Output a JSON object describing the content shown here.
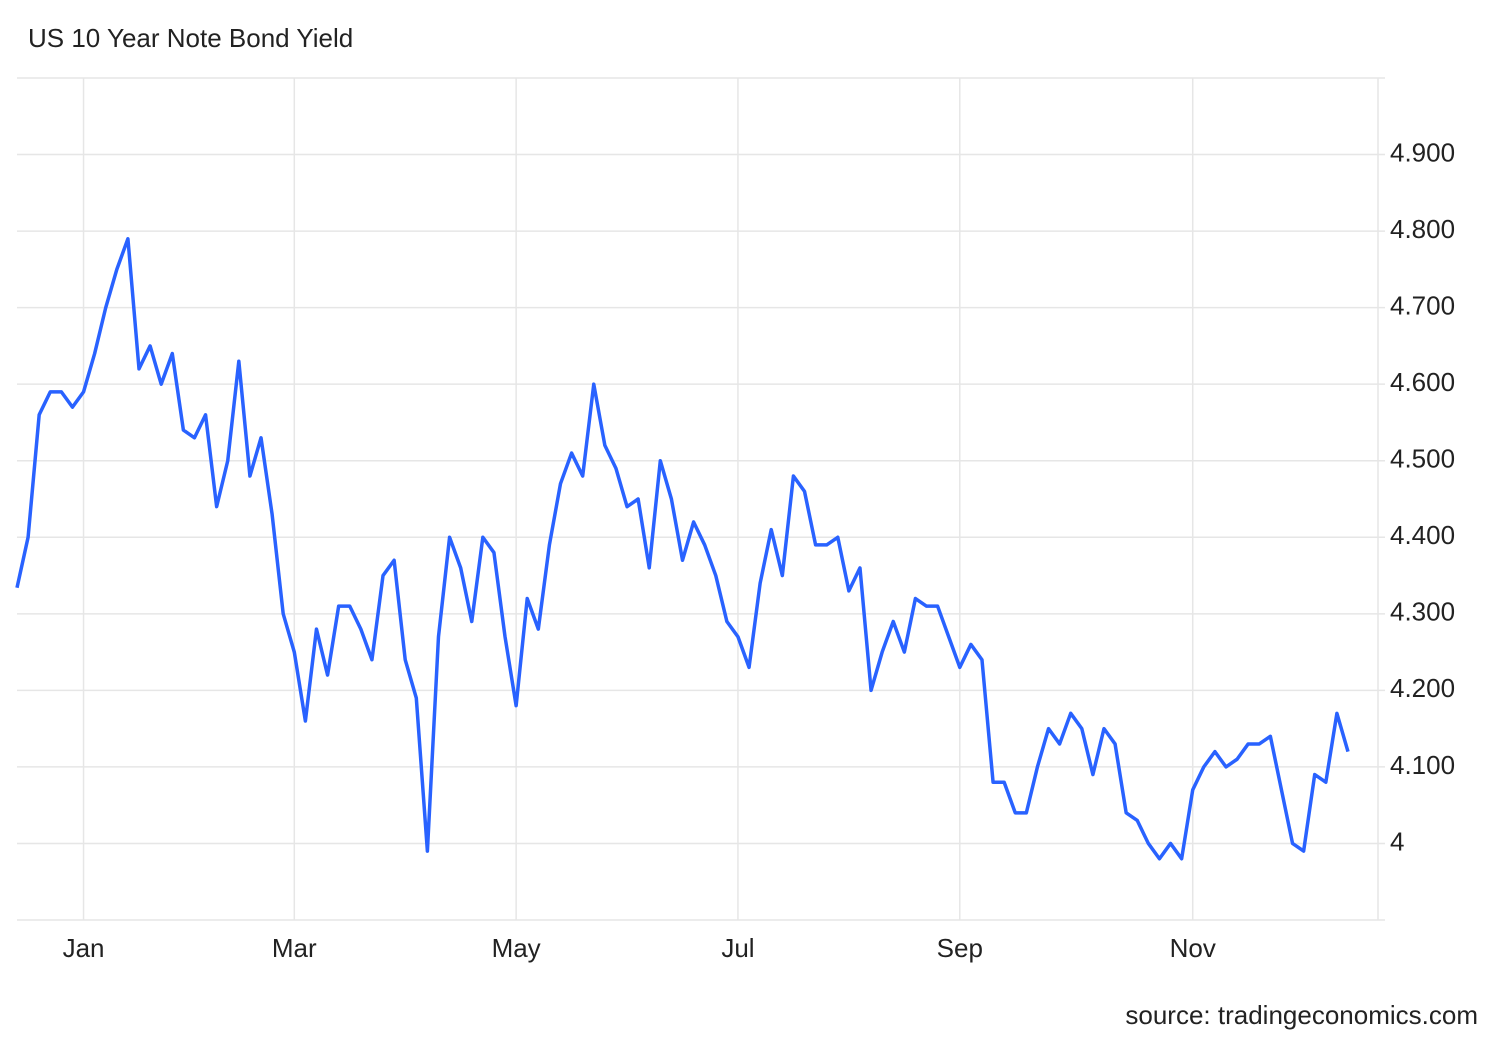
{
  "chart_data": {
    "type": "line",
    "title": "US 10 Year Note Bond Yield",
    "source": "source: tradingeconomics.com",
    "categories": [
      null,
      null,
      null,
      null,
      null,
      null,
      "Jan",
      null,
      null,
      null,
      null,
      null,
      null,
      null,
      null,
      null,
      null,
      null,
      null,
      null,
      null,
      null,
      null,
      null,
      null,
      "Mar",
      null,
      null,
      null,
      null,
      null,
      null,
      null,
      null,
      null,
      null,
      null,
      null,
      null,
      null,
      null,
      null,
      null,
      null,
      null,
      "May",
      null,
      null,
      null,
      null,
      null,
      null,
      null,
      null,
      null,
      null,
      null,
      null,
      null,
      null,
      null,
      null,
      null,
      null,
      null,
      "Jul",
      null,
      null,
      null,
      null,
      null,
      null,
      null,
      null,
      null,
      null,
      null,
      null,
      null,
      null,
      null,
      null,
      null,
      null,
      null,
      "Sep",
      null,
      null,
      null,
      null,
      null,
      null,
      null,
      null,
      null,
      null,
      null,
      null,
      null,
      null,
      null,
      null,
      null,
      null,
      null,
      null,
      "Nov",
      null,
      null,
      null,
      null,
      null,
      null,
      null,
      null,
      null,
      null,
      null,
      null,
      null,
      null
    ],
    "values": [
      4.334,
      4.4,
      4.56,
      4.59,
      4.59,
      4.57,
      4.59,
      4.64,
      4.7,
      4.75,
      4.79,
      4.62,
      4.65,
      4.6,
      4.64,
      4.54,
      4.53,
      4.56,
      4.44,
      4.5,
      4.63,
      4.48,
      4.53,
      4.43,
      4.3,
      4.25,
      4.16,
      4.28,
      4.22,
      4.31,
      4.31,
      4.28,
      4.24,
      4.35,
      4.37,
      4.24,
      4.19,
      3.99,
      4.27,
      4.4,
      4.36,
      4.29,
      4.4,
      4.38,
      4.27,
      4.18,
      4.32,
      4.28,
      4.39,
      4.47,
      4.51,
      4.48,
      4.6,
      4.52,
      4.49,
      4.44,
      4.45,
      4.36,
      4.5,
      4.45,
      4.37,
      4.42,
      4.39,
      4.35,
      4.29,
      4.27,
      4.23,
      4.34,
      4.41,
      4.35,
      4.48,
      4.46,
      4.39,
      4.39,
      4.4,
      4.33,
      4.36,
      4.2,
      4.25,
      4.29,
      4.25,
      4.32,
      4.31,
      4.31,
      4.27,
      4.23,
      4.26,
      4.24,
      4.08,
      4.08,
      4.04,
      4.04,
      4.1,
      4.15,
      4.13,
      4.17,
      4.15,
      4.09,
      4.15,
      4.13,
      4.04,
      4.03,
      4.0,
      3.98,
      4.0,
      3.98,
      4.07,
      4.1,
      4.12,
      4.1,
      4.11,
      4.13,
      4.13,
      4.14,
      4.07,
      4.0,
      3.99,
      4.09,
      4.08,
      4.17,
      4.12
    ],
    "color": "#2962ff",
    "ylim": [
      3.9,
      5.0
    ],
    "yticks": [
      4,
      {
        "value": 4.1,
        "label": "4.100"
      },
      {
        "value": 4.2,
        "label": "4.200"
      },
      {
        "value": 4.3,
        "label": "4.300"
      },
      {
        "value": 4.4,
        "label": "4.400"
      },
      {
        "value": 4.5,
        "label": "4.500"
      },
      {
        "value": 4.6,
        "label": "4.600"
      },
      {
        "value": 4.7,
        "label": "4.700"
      },
      {
        "value": 4.8,
        "label": "4.800"
      },
      {
        "value": 4.9,
        "label": "4.900"
      }
    ],
    "grid": true
  }
}
